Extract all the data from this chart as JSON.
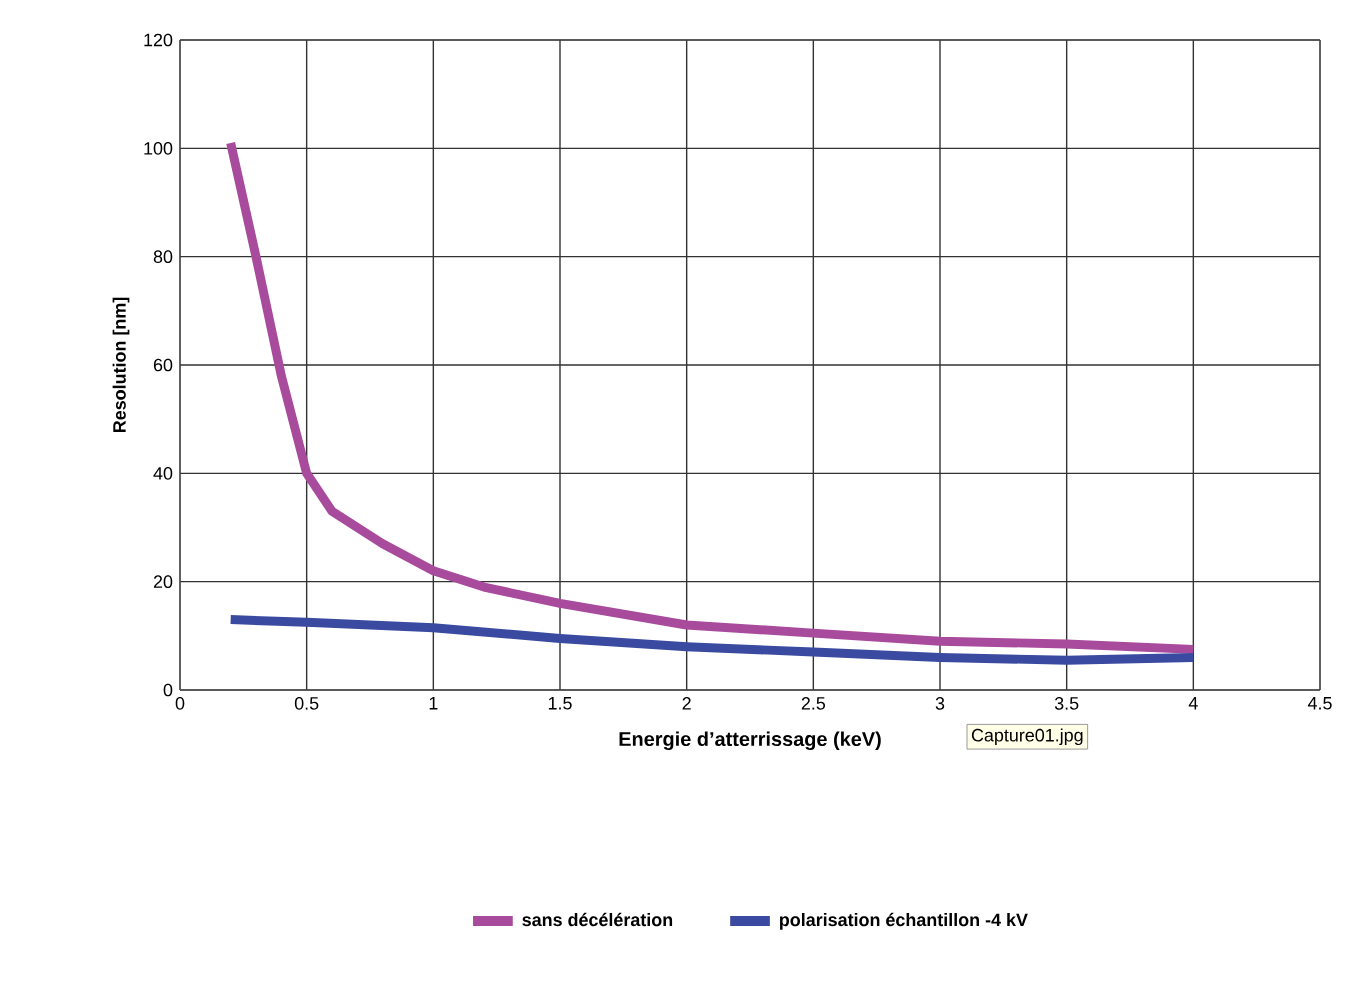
{
  "chart_data": {
    "type": "line",
    "xlabel": "Energie d’atterrissage (keV)",
    "ylabel": "Resolution [nm]",
    "xlim": [
      0,
      4.5
    ],
    "ylim": [
      0,
      120
    ],
    "xticks": [
      0,
      0.5,
      1,
      1.5,
      2,
      2.5,
      3,
      3.5,
      4,
      4.5
    ],
    "yticks": [
      0,
      20,
      40,
      60,
      80,
      100,
      120
    ],
    "grid": true,
    "legend": "bottom",
    "marker": "none",
    "line_style": "solid",
    "annotations": [
      "Capture01.jpg"
    ],
    "series": [
      {
        "name": "sans décélération",
        "color": "#a84b9c",
        "x": [
          0.2,
          0.3,
          0.4,
          0.5,
          0.6,
          0.8,
          1,
          1.2,
          1.5,
          2,
          2.5,
          3,
          3.5,
          4
        ],
        "values": [
          101,
          80,
          58,
          40,
          33,
          27,
          22,
          19,
          16,
          12,
          10.5,
          9,
          8.5,
          7.5
        ]
      },
      {
        "name": "polarisation échantillon -4 kV",
        "color": "#3a4aa0",
        "x": [
          0.2,
          0.5,
          1,
          1.5,
          2,
          2.5,
          3,
          3.5,
          4
        ],
        "values": [
          13,
          12.5,
          11.5,
          9.5,
          8,
          7,
          6,
          5.5,
          6
        ]
      }
    ]
  }
}
